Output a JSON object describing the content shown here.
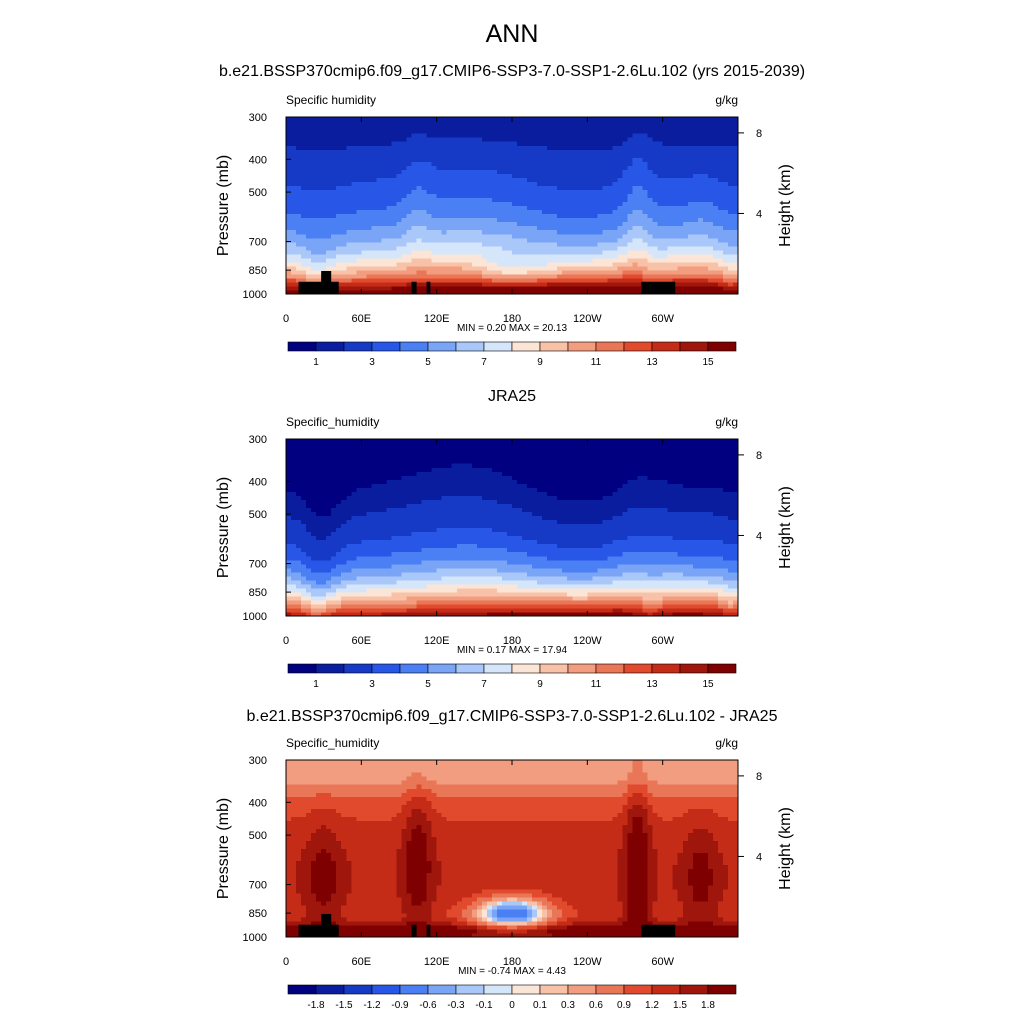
{
  "figure": {
    "title": "ANN",
    "case_title": "b.e21.BSSP370cmip6.f09_g17.CMIP6-SSP3-7.0-SSP1-2.6Lu.102 (yrs 2015-2039)"
  },
  "colors": {
    "sequential": [
      "#000080",
      "#0a1d9e",
      "#173ac6",
      "#2857e8",
      "#4b7ff4",
      "#7aa5f6",
      "#a9c8f9",
      "#d6e6fa",
      "#fbe5d6",
      "#f8c2a8",
      "#f29d7f",
      "#ea7658",
      "#e24a2d",
      "#c52c17",
      "#9e160c",
      "#7e0000"
    ],
    "diverging": [
      "#000080",
      "#0a1d9e",
      "#173ac6",
      "#2857e8",
      "#4b7ff4",
      "#7aa5f6",
      "#a9c8f9",
      "#d6e6fa",
      "#fbe5d6",
      "#f8c2a8",
      "#f29d7f",
      "#ea7658",
      "#e24a2d",
      "#c52c17",
      "#9e160c",
      "#7e0000"
    ],
    "topography": "#000000"
  },
  "chart_data": [
    {
      "type": "heatmap",
      "panel_title": "",
      "left_label": "Specific humidity",
      "right_label": "g/kg",
      "ylabel": "Pressure (mb)",
      "ylabel_right": "Height (km)",
      "xticks": [
        "0",
        "60E",
        "120E",
        "180",
        "120W",
        "60W"
      ],
      "yticks": [
        "300",
        "400",
        "500",
        "700",
        "850",
        "1000"
      ],
      "yticks_right": [
        "8",
        "4"
      ],
      "xlim": [
        0,
        360
      ],
      "ylim": [
        1000,
        300
      ],
      "stats": "MIN =   0.20  MAX =  20.13",
      "min": 0.2,
      "max": 20.13,
      "colorbar_labels": [
        "1",
        "3",
        "5",
        "7",
        "9",
        "11",
        "13",
        "15"
      ],
      "colorbar_levels": [
        0.5,
        1,
        2,
        3,
        4,
        5,
        6,
        7,
        8,
        9,
        10,
        11,
        12,
        13,
        14,
        15
      ],
      "field": "model"
    },
    {
      "type": "heatmap",
      "panel_title": "JRA25",
      "left_label": "Specific_humidity",
      "right_label": "g/kg",
      "ylabel": "Pressure (mb)",
      "ylabel_right": "Height (km)",
      "xticks": [
        "0",
        "60E",
        "120E",
        "180",
        "120W",
        "60W"
      ],
      "yticks": [
        "300",
        "400",
        "500",
        "700",
        "850",
        "1000"
      ],
      "yticks_right": [
        "8",
        "4"
      ],
      "xlim": [
        0,
        360
      ],
      "ylim": [
        1000,
        300
      ],
      "stats": "MIN =   0.17  MAX =  17.94",
      "min": 0.17,
      "max": 17.94,
      "colorbar_labels": [
        "1",
        "3",
        "5",
        "7",
        "9",
        "11",
        "13",
        "15"
      ],
      "colorbar_levels": [
        0.5,
        1,
        2,
        3,
        4,
        5,
        6,
        7,
        8,
        9,
        10,
        11,
        12,
        13,
        14,
        15
      ],
      "field": "obs"
    },
    {
      "type": "heatmap",
      "panel_title": "b.e21.BSSP370cmip6.f09_g17.CMIP6-SSP3-7.0-SSP1-2.6Lu.102 - JRA25",
      "left_label": "Specific_humidity",
      "right_label": "g/kg",
      "ylabel": "Pressure (mb)",
      "ylabel_right": "Height (km)",
      "xticks": [
        "0",
        "60E",
        "120E",
        "180",
        "120W",
        "60W"
      ],
      "yticks": [
        "300",
        "400",
        "500",
        "700",
        "850",
        "1000"
      ],
      "yticks_right": [
        "8",
        "4"
      ],
      "xlim": [
        0,
        360
      ],
      "ylim": [
        1000,
        300
      ],
      "stats": "MIN =  -0.74  MAX =   4.43",
      "min": -0.74,
      "max": 4.43,
      "colorbar_labels": [
        "-1.8",
        "-1.5",
        "-1.2",
        "-0.9",
        "-0.6",
        "-0.3",
        "-0.1",
        "0",
        "0.1",
        "0.3",
        "0.6",
        "0.9",
        "1.2",
        "1.5",
        "1.8"
      ],
      "colorbar_levels": [
        -1.8,
        -1.5,
        -1.2,
        -0.9,
        -0.6,
        -0.3,
        -0.1,
        0,
        0.1,
        0.3,
        0.6,
        0.9,
        1.2,
        1.5,
        1.8
      ],
      "field": "diff"
    }
  ]
}
